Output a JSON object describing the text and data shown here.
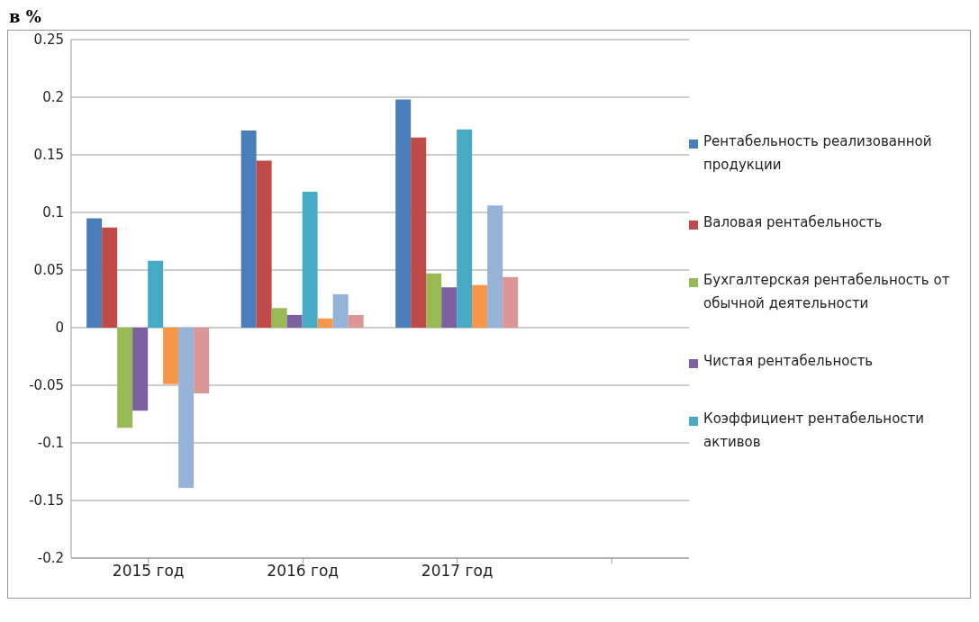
{
  "chart_data": {
    "type": "bar",
    "ylabel": "в %",
    "categories": [
      "2015 год",
      "2016 год",
      "2017 год",
      null
    ],
    "series": [
      {
        "name": "Рентабельность реализованной продукции",
        "color": "#4a7ebb",
        "values": [
          0.095,
          0.171,
          0.198,
          null
        ]
      },
      {
        "name": "Валовая рентабельность",
        "color": "#be4b48",
        "values": [
          0.087,
          0.145,
          0.165,
          null
        ]
      },
      {
        "name": "Бухгалтерская рентабельность от обычной деятельности",
        "color": "#98b954",
        "values": [
          -0.087,
          0.017,
          0.047,
          null
        ]
      },
      {
        "name": "Чистая рентабельность",
        "color": "#7d60a0",
        "values": [
          -0.072,
          0.011,
          0.035,
          null
        ]
      },
      {
        "name": "Коэффициент рентабельности активов",
        "color": "#46aac5",
        "values": [
          0.058,
          0.118,
          0.172,
          null
        ]
      },
      {
        "color": "#f79646",
        "values": [
          -0.049,
          0.008,
          0.037,
          null
        ]
      },
      {
        "color": "#95b3d7",
        "values": [
          -0.139,
          0.029,
          0.106,
          null
        ]
      },
      {
        "color": "#d99694",
        "values": [
          -0.057,
          0.011,
          0.044,
          null
        ]
      }
    ],
    "ylim": [
      -0.2,
      0.25
    ],
    "yticks": [
      -0.2,
      -0.15,
      -0.1,
      -0.05,
      0,
      0.05,
      0.1,
      0.15,
      0.2,
      0.25
    ],
    "grid": "y",
    "legend": "right"
  }
}
